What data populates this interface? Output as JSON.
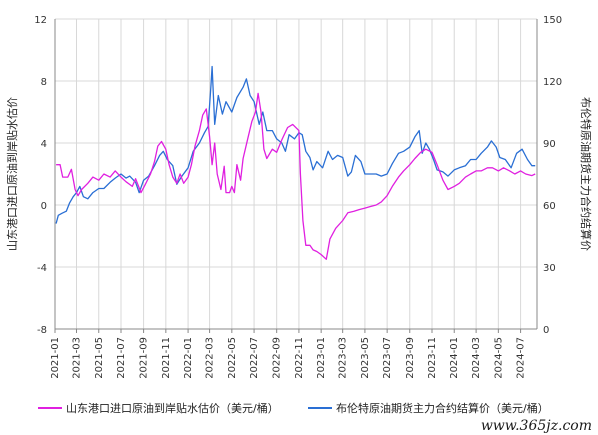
{
  "chart_data": {
    "type": "line",
    "title": "",
    "x_tick_labels": [
      "2021-01",
      "2021-03",
      "2021-05",
      "2021-07",
      "2021-09",
      "2021-11",
      "2022-01",
      "2022-03",
      "2022-05",
      "2022-07",
      "2022-09",
      "2022-11",
      "2023-01",
      "2023-03",
      "2023-05",
      "2023-07",
      "2023-09",
      "2023-11",
      "2024-01",
      "2024-03",
      "2024-05",
      "2024-07"
    ],
    "y_left": {
      "label": "山东港口进口原油到岸贴水估价",
      "range": [
        -8,
        12
      ],
      "ticks": [
        "-8",
        "-4",
        "0",
        "4",
        "8",
        "12"
      ],
      "tick_values": [
        -8,
        -4,
        0,
        4,
        8,
        12
      ]
    },
    "y_right": {
      "label": "布伦特原油期货主力合约结算价",
      "range": [
        0,
        150
      ],
      "ticks": [
        "0",
        "30",
        "60",
        "90",
        "120",
        "150"
      ],
      "tick_values": [
        0,
        30,
        60,
        90,
        120,
        150
      ]
    },
    "grid": true,
    "legend_position": "bottom",
    "series": [
      {
        "name": "山东港口进口原油到岸贴水估价（美元/桶）",
        "axis": "left",
        "color": "#e020e0",
        "points": [
          [
            "2021-01-04",
            2.6
          ],
          [
            "2021-01-15",
            2.6
          ],
          [
            "2021-01-22",
            1.8
          ],
          [
            "2021-02-05",
            1.8
          ],
          [
            "2021-02-15",
            2.3
          ],
          [
            "2021-02-25",
            1.0
          ],
          [
            "2021-03-05",
            0.6
          ],
          [
            "2021-03-15",
            1.0
          ],
          [
            "2021-04-01",
            1.4
          ],
          [
            "2021-04-15",
            1.8
          ],
          [
            "2021-05-01",
            1.6
          ],
          [
            "2021-05-15",
            2.0
          ],
          [
            "2021-06-01",
            1.8
          ],
          [
            "2021-06-15",
            2.2
          ],
          [
            "2021-07-01",
            1.8
          ],
          [
            "2021-07-15",
            1.5
          ],
          [
            "2021-08-01",
            1.2
          ],
          [
            "2021-08-10",
            1.7
          ],
          [
            "2021-08-25",
            0.8
          ],
          [
            "2021-09-05",
            1.3
          ],
          [
            "2021-09-20",
            2.0
          ],
          [
            "2021-10-01",
            2.8
          ],
          [
            "2021-10-10",
            3.8
          ],
          [
            "2021-10-20",
            4.1
          ],
          [
            "2021-11-01",
            3.6
          ],
          [
            "2021-11-10",
            2.6
          ],
          [
            "2021-11-20",
            1.8
          ],
          [
            "2021-12-01",
            1.4
          ],
          [
            "2021-12-10",
            2.0
          ],
          [
            "2021-12-20",
            1.4
          ],
          [
            "2022-01-01",
            1.8
          ],
          [
            "2022-01-10",
            2.6
          ],
          [
            "2022-01-20",
            3.8
          ],
          [
            "2022-02-01",
            4.8
          ],
          [
            "2022-02-10",
            5.8
          ],
          [
            "2022-02-20",
            6.2
          ],
          [
            "2022-03-01",
            4.4
          ],
          [
            "2022-03-08",
            2.6
          ],
          [
            "2022-03-15",
            4.0
          ],
          [
            "2022-03-22",
            2.0
          ],
          [
            "2022-04-01",
            1.0
          ],
          [
            "2022-04-10",
            2.5
          ],
          [
            "2022-04-15",
            0.8
          ],
          [
            "2022-04-25",
            0.8
          ],
          [
            "2022-05-01",
            1.2
          ],
          [
            "2022-05-08",
            0.8
          ],
          [
            "2022-05-15",
            2.6
          ],
          [
            "2022-05-25",
            1.6
          ],
          [
            "2022-06-01",
            3.0
          ],
          [
            "2022-06-15",
            4.4
          ],
          [
            "2022-06-25",
            5.4
          ],
          [
            "2022-07-05",
            6.0
          ],
          [
            "2022-07-12",
            7.2
          ],
          [
            "2022-07-20",
            6.0
          ],
          [
            "2022-07-28",
            3.6
          ],
          [
            "2022-08-05",
            3.0
          ],
          [
            "2022-08-20",
            3.6
          ],
          [
            "2022-09-01",
            3.4
          ],
          [
            "2022-09-15",
            4.2
          ],
          [
            "2022-10-01",
            5.0
          ],
          [
            "2022-10-15",
            5.2
          ],
          [
            "2022-11-01",
            4.8
          ],
          [
            "2022-11-05",
            2.0
          ],
          [
            "2022-11-12",
            -1.0
          ],
          [
            "2022-11-20",
            -2.6
          ],
          [
            "2022-12-01",
            -2.6
          ],
          [
            "2022-12-10",
            -2.9
          ],
          [
            "2022-12-20",
            -3.0
          ],
          [
            "2023-01-01",
            -3.2
          ],
          [
            "2023-01-15",
            -3.5
          ],
          [
            "2023-01-25",
            -2.2
          ],
          [
            "2023-02-10",
            -1.5
          ],
          [
            "2023-03-01",
            -1.0
          ],
          [
            "2023-03-15",
            -0.5
          ],
          [
            "2023-04-01",
            -0.4
          ],
          [
            "2023-04-15",
            -0.3
          ],
          [
            "2023-05-01",
            -0.2
          ],
          [
            "2023-05-15",
            -0.1
          ],
          [
            "2023-06-01",
            0.0
          ],
          [
            "2023-06-15",
            0.2
          ],
          [
            "2023-07-01",
            0.6
          ],
          [
            "2023-07-15",
            1.2
          ],
          [
            "2023-08-01",
            1.8
          ],
          [
            "2023-08-15",
            2.2
          ],
          [
            "2023-09-01",
            2.6
          ],
          [
            "2023-09-15",
            3.0
          ],
          [
            "2023-10-01",
            3.4
          ],
          [
            "2023-10-15",
            3.6
          ],
          [
            "2023-11-01",
            3.4
          ],
          [
            "2023-11-15",
            2.6
          ],
          [
            "2023-12-01",
            1.6
          ],
          [
            "2023-12-15",
            1.0
          ],
          [
            "2024-01-01",
            1.2
          ],
          [
            "2024-01-15",
            1.4
          ],
          [
            "2024-02-01",
            1.8
          ],
          [
            "2024-02-15",
            2.0
          ],
          [
            "2024-03-01",
            2.2
          ],
          [
            "2024-03-15",
            2.2
          ],
          [
            "2024-04-01",
            2.4
          ],
          [
            "2024-04-15",
            2.4
          ],
          [
            "2024-05-01",
            2.2
          ],
          [
            "2024-05-15",
            2.4
          ],
          [
            "2024-06-01",
            2.2
          ],
          [
            "2024-06-15",
            2.0
          ],
          [
            "2024-07-01",
            2.2
          ],
          [
            "2024-07-15",
            2.0
          ],
          [
            "2024-08-01",
            1.9
          ],
          [
            "2024-08-10",
            2.0
          ]
        ]
      },
      {
        "name": "布伦特原油期货主力合约结算价（美元/桶）",
        "axis": "right",
        "color": "#2a6fd4",
        "points": [
          [
            "2021-01-04",
            51
          ],
          [
            "2021-01-10",
            55
          ],
          [
            "2021-01-20",
            56
          ],
          [
            "2021-02-01",
            57
          ],
          [
            "2021-02-10",
            61
          ],
          [
            "2021-02-20",
            64
          ],
          [
            "2021-03-01",
            66
          ],
          [
            "2021-03-10",
            69
          ],
          [
            "2021-03-20",
            64
          ],
          [
            "2021-04-01",
            63
          ],
          [
            "2021-04-15",
            66
          ],
          [
            "2021-05-01",
            68
          ],
          [
            "2021-05-15",
            68
          ],
          [
            "2021-06-01",
            71
          ],
          [
            "2021-06-15",
            73
          ],
          [
            "2021-07-01",
            75
          ],
          [
            "2021-07-15",
            73
          ],
          [
            "2021-07-25",
            74
          ],
          [
            "2021-08-10",
            71
          ],
          [
            "2021-08-20",
            66
          ],
          [
            "2021-09-01",
            72
          ],
          [
            "2021-09-15",
            74
          ],
          [
            "2021-10-01",
            79
          ],
          [
            "2021-10-15",
            84
          ],
          [
            "2021-10-25",
            86
          ],
          [
            "2021-11-05",
            82
          ],
          [
            "2021-11-20",
            79
          ],
          [
            "2021-12-01",
            70
          ],
          [
            "2021-12-15",
            74
          ],
          [
            "2022-01-01",
            78
          ],
          [
            "2022-01-15",
            86
          ],
          [
            "2022-02-01",
            90
          ],
          [
            "2022-02-15",
            95
          ],
          [
            "2022-02-25",
            98
          ],
          [
            "2022-03-05",
            118
          ],
          [
            "2022-03-08",
            127
          ],
          [
            "2022-03-15",
            99
          ],
          [
            "2022-03-25",
            113
          ],
          [
            "2022-04-05",
            104
          ],
          [
            "2022-04-15",
            110
          ],
          [
            "2022-05-01",
            105
          ],
          [
            "2022-05-15",
            112
          ],
          [
            "2022-06-01",
            117
          ],
          [
            "2022-06-10",
            121
          ],
          [
            "2022-06-20",
            113
          ],
          [
            "2022-07-01",
            110
          ],
          [
            "2022-07-15",
            99
          ],
          [
            "2022-07-25",
            105
          ],
          [
            "2022-08-05",
            96
          ],
          [
            "2022-08-20",
            96
          ],
          [
            "2022-09-01",
            92
          ],
          [
            "2022-09-15",
            90
          ],
          [
            "2022-09-25",
            86
          ],
          [
            "2022-10-05",
            94
          ],
          [
            "2022-10-20",
            92
          ],
          [
            "2022-11-01",
            95
          ],
          [
            "2022-11-10",
            94
          ],
          [
            "2022-11-20",
            86
          ],
          [
            "2022-12-01",
            83
          ],
          [
            "2022-12-10",
            77
          ],
          [
            "2022-12-20",
            81
          ],
          [
            "2023-01-05",
            78
          ],
          [
            "2023-01-20",
            86
          ],
          [
            "2023-02-01",
            82
          ],
          [
            "2023-02-15",
            84
          ],
          [
            "2023-03-01",
            83
          ],
          [
            "2023-03-15",
            74
          ],
          [
            "2023-03-25",
            76
          ],
          [
            "2023-04-05",
            84
          ],
          [
            "2023-04-20",
            81
          ],
          [
            "2023-05-01",
            75
          ],
          [
            "2023-05-15",
            75
          ],
          [
            "2023-06-01",
            75
          ],
          [
            "2023-06-15",
            74
          ],
          [
            "2023-07-01",
            75
          ],
          [
            "2023-07-15",
            80
          ],
          [
            "2023-08-01",
            85
          ],
          [
            "2023-08-15",
            86
          ],
          [
            "2023-09-01",
            88
          ],
          [
            "2023-09-15",
            93
          ],
          [
            "2023-09-27",
            96
          ],
          [
            "2023-10-05",
            85
          ],
          [
            "2023-10-15",
            90
          ],
          [
            "2023-10-25",
            87
          ],
          [
            "2023-11-05",
            82
          ],
          [
            "2023-11-15",
            77
          ],
          [
            "2023-12-01",
            76
          ],
          [
            "2023-12-15",
            74
          ],
          [
            "2024-01-01",
            77
          ],
          [
            "2024-01-15",
            78
          ],
          [
            "2024-02-01",
            79
          ],
          [
            "2024-02-15",
            82
          ],
          [
            "2024-03-01",
            82
          ],
          [
            "2024-03-15",
            85
          ],
          [
            "2024-04-01",
            88
          ],
          [
            "2024-04-12",
            91
          ],
          [
            "2024-04-25",
            88
          ],
          [
            "2024-05-05",
            83
          ],
          [
            "2024-05-20",
            82
          ],
          [
            "2024-06-05",
            78
          ],
          [
            "2024-06-20",
            85
          ],
          [
            "2024-07-05",
            87
          ],
          [
            "2024-07-20",
            82
          ],
          [
            "2024-08-01",
            79
          ],
          [
            "2024-08-10",
            79
          ]
        ]
      }
    ]
  },
  "watermark": "www.365jz.com"
}
